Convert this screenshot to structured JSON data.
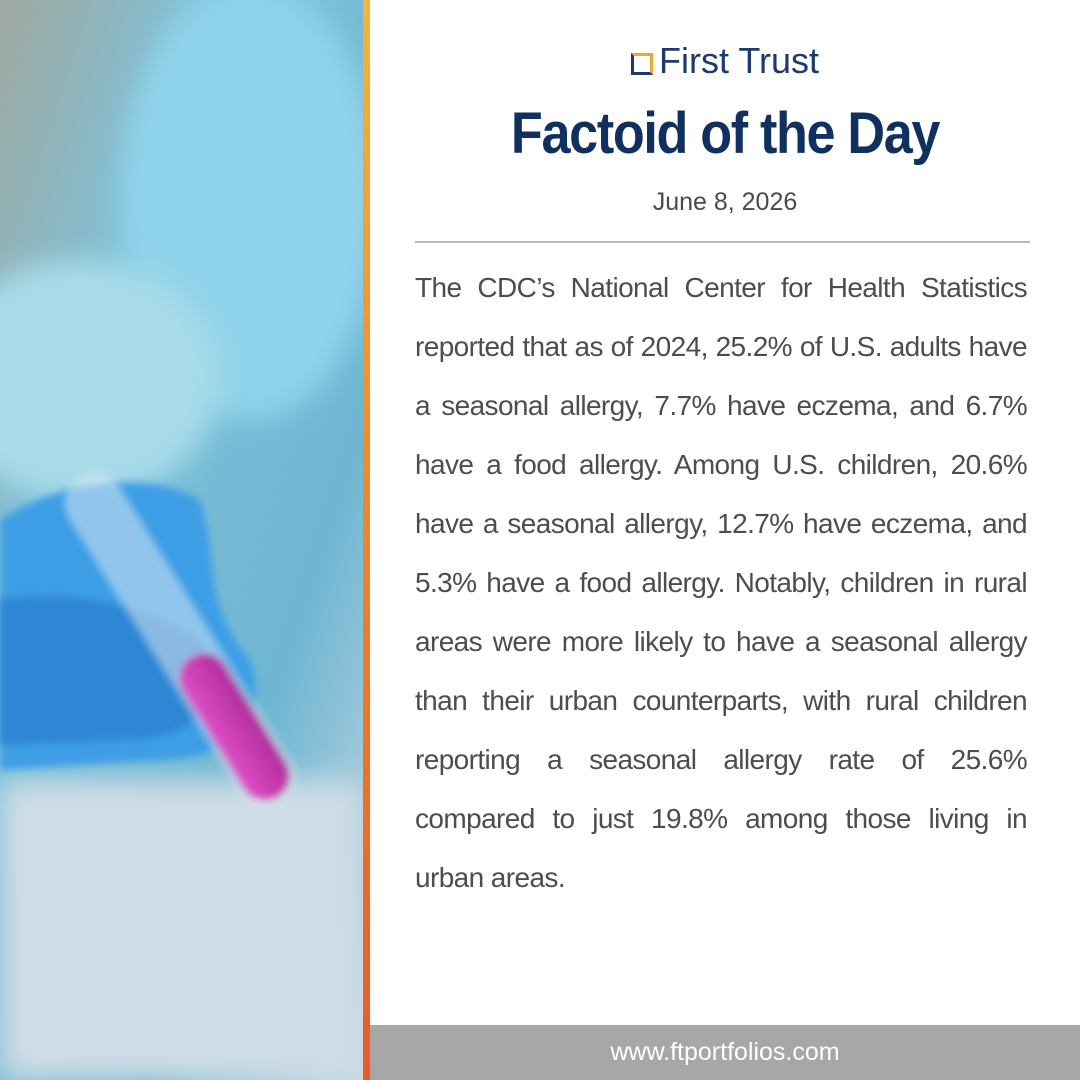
{
  "header": {
    "logo": "First Trust",
    "title": "Factoid of the Day",
    "date": "June 8, 2026"
  },
  "body": {
    "text": "The CDC’s National Center for Health Statistics reported that as of 2024, 25.2% of U.S. adults have a seasonal allergy, 7.7% have eczema, and 6.7% have a food allergy. Among U.S. children, 20.6% have a seasonal allergy, 12.7% have eczema, and 5.3% have a food allergy. Notably, children in rural areas were more likely to have a seasonal allergy than their urban counterparts, with rural children reporting a seasonal allergy rate of 25.6% compared to just 19.8% among those living in urban areas."
  },
  "footer": {
    "url": "www.ftportfolios.com"
  }
}
